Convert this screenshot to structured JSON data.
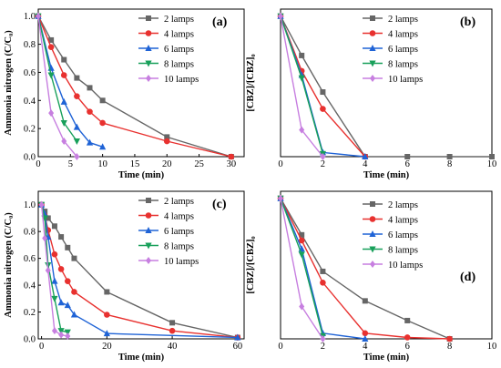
{
  "chart_data": [
    {
      "panel_label": "(a)",
      "type": "line",
      "xlabel": "Time (min)",
      "ylabel": "Ammonia nitrogen (C/C₀)",
      "xlim": [
        0,
        32
      ],
      "ylim": [
        0,
        1.05
      ],
      "xticks": [
        "0",
        "5",
        "10",
        "15",
        "20",
        "25",
        "30"
      ],
      "yticks": [
        "0.0",
        "0.2",
        "0.4",
        "0.6",
        "0.8",
        "1.0"
      ],
      "legend_position": "top-right",
      "series": [
        {
          "name": "2 lamps",
          "color": "#666666",
          "marker": "square",
          "x": [
            0,
            2,
            4,
            6,
            8,
            10,
            20,
            30
          ],
          "y": [
            1.0,
            0.83,
            0.69,
            0.56,
            0.49,
            0.4,
            0.14,
            0.0
          ]
        },
        {
          "name": "4 lamps",
          "color": "#e8312f",
          "marker": "circle",
          "x": [
            0,
            2,
            4,
            6,
            8,
            10,
            20,
            30
          ],
          "y": [
            1.0,
            0.78,
            0.58,
            0.43,
            0.32,
            0.24,
            0.11,
            0.0
          ]
        },
        {
          "name": "6 lamps",
          "color": "#1f63d6",
          "marker": "triangle-up",
          "x": [
            0,
            2,
            4,
            6,
            8,
            10
          ],
          "y": [
            1.0,
            0.63,
            0.39,
            0.21,
            0.1,
            0.07
          ]
        },
        {
          "name": "8 lamps",
          "color": "#18a05a",
          "marker": "triangle-down",
          "x": [
            0,
            2,
            4,
            6
          ],
          "y": [
            1.0,
            0.58,
            0.24,
            0.11
          ]
        },
        {
          "name": "10 lamps",
          "color": "#c77fe0",
          "marker": "diamond",
          "x": [
            0,
            2,
            4,
            6
          ],
          "y": [
            1.0,
            0.31,
            0.11,
            0.0
          ]
        }
      ]
    },
    {
      "panel_label": "(b)",
      "type": "line",
      "xlabel": "Time (min)",
      "ylabel": "[CBZ]/[CBZ]₀",
      "xlim": [
        0,
        10
      ],
      "ylim": [
        0,
        1.05
      ],
      "xticks": [
        "0",
        "2",
        "4",
        "6",
        "8",
        "10"
      ],
      "yticks": [],
      "legend_position": "top-right",
      "series": [
        {
          "name": "2 lamps",
          "color": "#666666",
          "marker": "square",
          "x": [
            0,
            1,
            2,
            4,
            6,
            8,
            10
          ],
          "y": [
            1.0,
            0.72,
            0.46,
            0.0,
            0.0,
            0.0,
            0.0
          ]
        },
        {
          "name": "4 lamps",
          "color": "#e8312f",
          "marker": "circle",
          "x": [
            0,
            1,
            2,
            4
          ],
          "y": [
            1.0,
            0.61,
            0.34,
            0.0
          ]
        },
        {
          "name": "6 lamps",
          "color": "#1f63d6",
          "marker": "triangle-up",
          "x": [
            0,
            1,
            2,
            4
          ],
          "y": [
            1.0,
            0.58,
            0.03,
            0.0
          ]
        },
        {
          "name": "8 lamps",
          "color": "#18a05a",
          "marker": "triangle-down",
          "x": [
            0,
            1,
            2
          ],
          "y": [
            1.0,
            0.56,
            0.02
          ]
        },
        {
          "name": "10 lamps",
          "color": "#c77fe0",
          "marker": "diamond",
          "x": [
            0,
            1,
            2
          ],
          "y": [
            1.0,
            0.19,
            0.0
          ]
        }
      ]
    },
    {
      "panel_label": "(c)",
      "type": "line",
      "xlabel": "Time (min)",
      "ylabel": "Ammonia nitrogen (C/C₀)",
      "xlim": [
        -1,
        62
      ],
      "ylim": [
        0,
        1.1
      ],
      "xticks": [
        "0",
        "20",
        "40",
        "60"
      ],
      "yticks": [
        "0.0",
        "0.2",
        "0.4",
        "0.6",
        "0.8",
        "1.0"
      ],
      "legend_position": "top-right",
      "series": [
        {
          "name": "2 lamps",
          "color": "#666666",
          "marker": "square",
          "x": [
            0,
            1,
            2,
            4,
            6,
            8,
            10,
            20,
            40,
            60
          ],
          "y": [
            1.0,
            0.95,
            0.9,
            0.84,
            0.76,
            0.68,
            0.6,
            0.35,
            0.12,
            0.01
          ]
        },
        {
          "name": "4 lamps",
          "color": "#e8312f",
          "marker": "circle",
          "x": [
            0,
            1,
            2,
            4,
            6,
            8,
            10,
            20,
            40,
            60
          ],
          "y": [
            1.0,
            0.92,
            0.81,
            0.63,
            0.52,
            0.43,
            0.35,
            0.18,
            0.06,
            0.01
          ]
        },
        {
          "name": "6 lamps",
          "color": "#1f63d6",
          "marker": "triangle-up",
          "x": [
            0,
            1,
            2,
            4,
            6,
            8,
            10,
            20,
            60
          ],
          "y": [
            1.0,
            0.93,
            0.76,
            0.43,
            0.27,
            0.25,
            0.18,
            0.04,
            0.01
          ]
        },
        {
          "name": "8 lamps",
          "color": "#18a05a",
          "marker": "triangle-down",
          "x": [
            0,
            1,
            2,
            4,
            6,
            8
          ],
          "y": [
            1.0,
            0.9,
            0.55,
            0.3,
            0.06,
            0.05
          ]
        },
        {
          "name": "10 lamps",
          "color": "#c77fe0",
          "marker": "diamond",
          "x": [
            0,
            1,
            2,
            4,
            6,
            8
          ],
          "y": [
            1.0,
            0.75,
            0.51,
            0.06,
            0.03,
            0.02
          ]
        }
      ]
    },
    {
      "panel_label": "(d)",
      "type": "line",
      "xlabel": "Time (min)",
      "ylabel": "[CBZ]/[CBZ]₀",
      "xlim": [
        0,
        10
      ],
      "ylim": [
        0,
        1.05
      ],
      "xticks": [
        "0",
        "2",
        "4",
        "6",
        "8",
        "10"
      ],
      "yticks": [],
      "legend_position": "top-right",
      "series": [
        {
          "name": "2 lamps",
          "color": "#666666",
          "marker": "square",
          "x": [
            0,
            1,
            2,
            4,
            6,
            8
          ],
          "y": [
            1.0,
            0.74,
            0.48,
            0.27,
            0.13,
            0.0
          ]
        },
        {
          "name": "4 lamps",
          "color": "#e8312f",
          "marker": "circle",
          "x": [
            0,
            1,
            2,
            4,
            6,
            8
          ],
          "y": [
            1.0,
            0.7,
            0.4,
            0.04,
            0.01,
            0.0
          ]
        },
        {
          "name": "6 lamps",
          "color": "#1f63d6",
          "marker": "triangle-up",
          "x": [
            0,
            1,
            2,
            4
          ],
          "y": [
            1.0,
            0.64,
            0.04,
            0.0
          ]
        },
        {
          "name": "8 lamps",
          "color": "#18a05a",
          "marker": "triangle-down",
          "x": [
            0,
            1,
            2
          ],
          "y": [
            1.0,
            0.6,
            0.02
          ]
        },
        {
          "name": "10 lamps",
          "color": "#c77fe0",
          "marker": "diamond",
          "x": [
            0,
            1,
            2
          ],
          "y": [
            1.0,
            0.23,
            0.0
          ]
        }
      ]
    }
  ]
}
